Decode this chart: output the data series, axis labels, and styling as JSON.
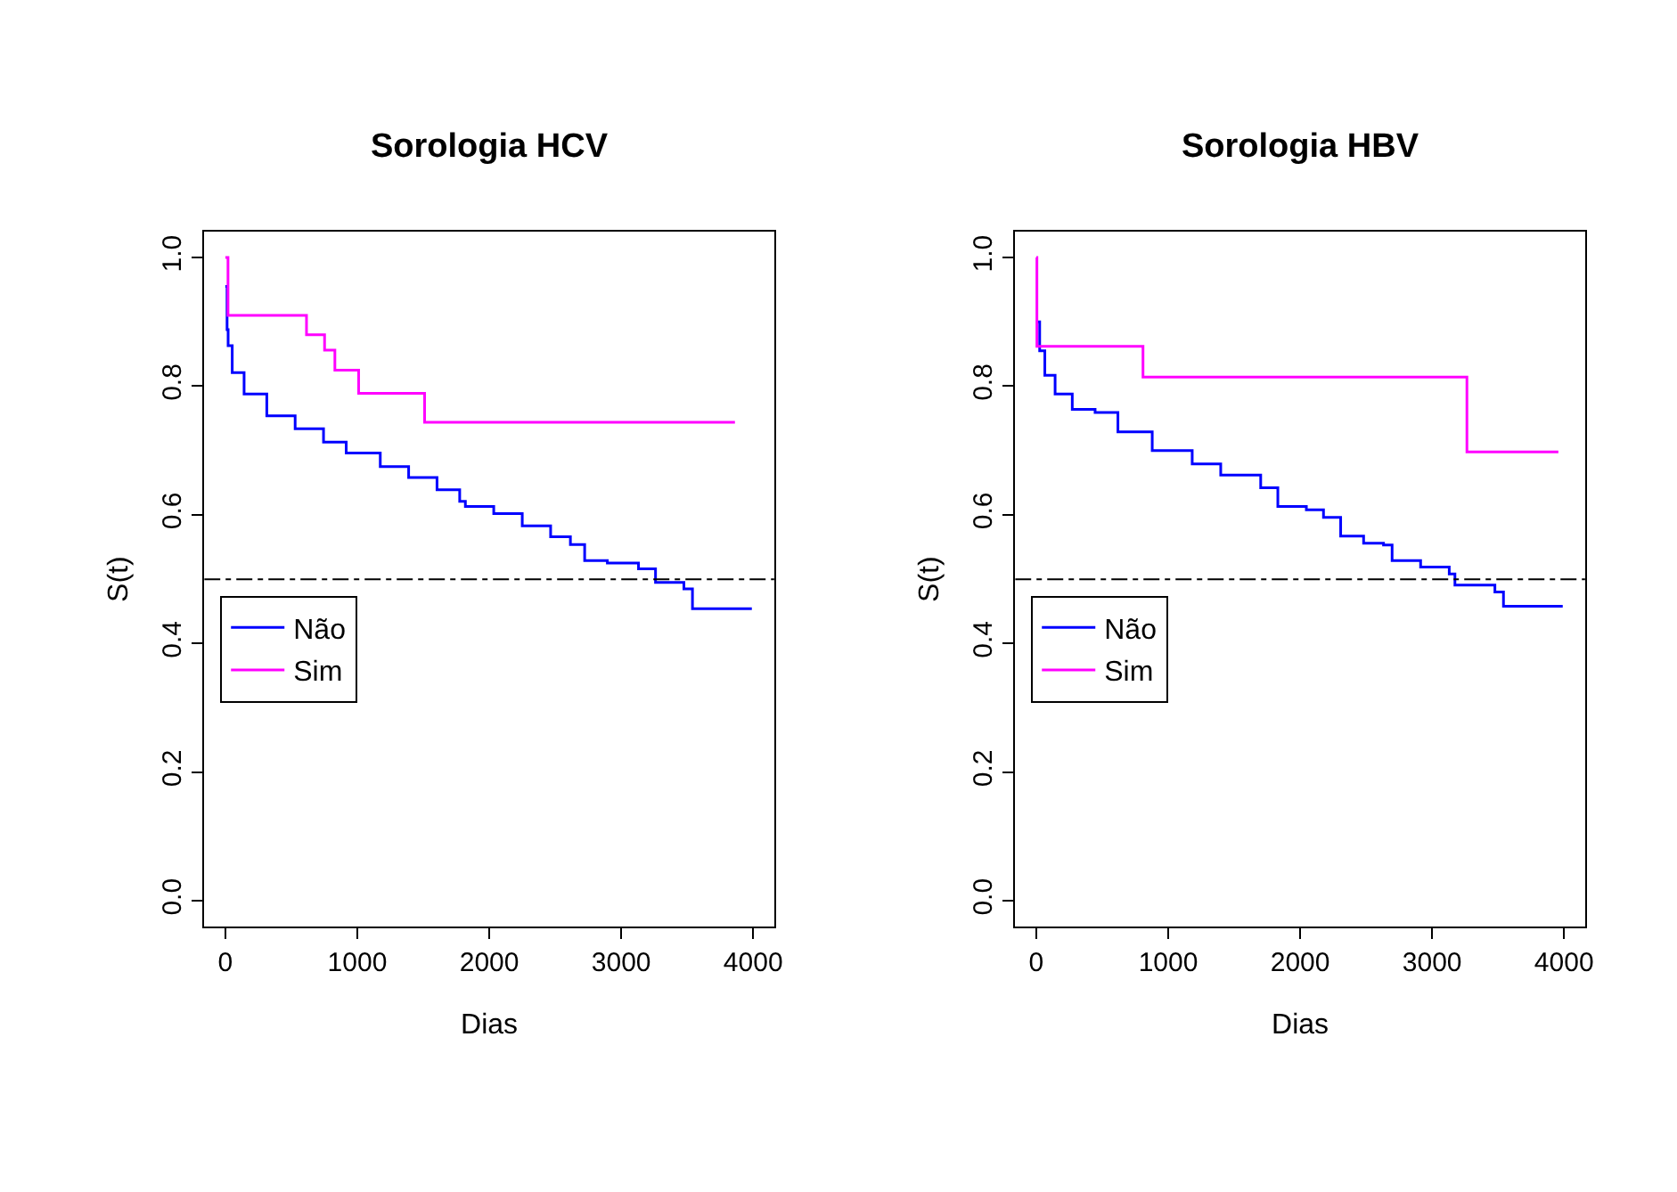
{
  "chart_data": [
    {
      "type": "step",
      "title": "Sorologia HCV",
      "xlabel": "Dias",
      "ylabel": "S(t)",
      "xlim": [
        -160,
        4160
      ],
      "xticks": [
        0,
        1000,
        2000,
        3000,
        4000
      ],
      "ylim": [
        -0.04,
        1.04
      ],
      "yticks": [
        {
          "value": 0,
          "label": "0.0"
        },
        {
          "value": 0.2,
          "label": "0.2"
        },
        {
          "value": 0.4,
          "label": "0.4"
        },
        {
          "value": 0.6,
          "label": "0.6"
        },
        {
          "value": 0.8,
          "label": "0.8"
        },
        {
          "value": 1,
          "label": "1.0"
        }
      ],
      "legend": "bottom left",
      "series": [
        {
          "name": "Não",
          "color": "#0000ff",
          "x": [
            0,
            13,
            21,
            52,
            142,
            314,
            529,
            744,
            916,
            1174,
            1389,
            1604,
            1776,
            1819,
            2034,
            2250,
            2465,
            2615,
            2723,
            2895,
            3131,
            3260,
            3475,
            3540,
            3990
          ],
          "values": [
            0.955,
            0.888,
            0.863,
            0.821,
            0.788,
            0.754,
            0.734,
            0.713,
            0.696,
            0.675,
            0.658,
            0.639,
            0.621,
            0.613,
            0.602,
            0.583,
            0.566,
            0.554,
            0.529,
            0.525,
            0.516,
            0.495,
            0.485,
            0.454,
            0.454
          ]
        },
        {
          "name": "Sim",
          "color": "#ff00ff",
          "x": [
            0,
            20,
            615,
            752,
            830,
            1010,
            1510,
            3862
          ],
          "values": [
            1.0,
            0.91,
            0.88,
            0.856,
            0.825,
            0.789,
            0.744,
            0.744
          ]
        }
      ],
      "ref_lines": [
        {
          "axis": "y",
          "value": 0.5,
          "color": "#000000",
          "line_style": "dashdot"
        }
      ]
    },
    {
      "type": "step",
      "title": "Sorologia HBV",
      "xlabel": "Dias",
      "ylabel": "S(t)",
      "xlim": [
        -160,
        4160
      ],
      "xticks": [
        0,
        1000,
        2000,
        3000,
        4000
      ],
      "ylim": [
        -0.04,
        1.04
      ],
      "yticks": [
        {
          "value": 0,
          "label": "0.0"
        },
        {
          "value": 0.2,
          "label": "0.2"
        },
        {
          "value": 0.4,
          "label": "0.4"
        },
        {
          "value": 0.6,
          "label": "0.6"
        },
        {
          "value": 0.8,
          "label": "0.8"
        },
        {
          "value": 1,
          "label": "1.0"
        }
      ],
      "legend": "bottom left",
      "series": [
        {
          "name": "Não",
          "color": "#0000ff",
          "x": [
            0,
            26,
            65,
            143,
            273,
            446,
            619,
            879,
            1182,
            1398,
            1701,
            1831,
            2047,
            2177,
            2307,
            2481,
            2632,
            2697,
            2913,
            3130,
            3173,
            3476,
            3541,
            3990
          ],
          "values": [
            0.9,
            0.855,
            0.817,
            0.788,
            0.764,
            0.759,
            0.729,
            0.7,
            0.679,
            0.662,
            0.642,
            0.613,
            0.608,
            0.596,
            0.567,
            0.556,
            0.553,
            0.529,
            0.519,
            0.508,
            0.491,
            0.48,
            0.458,
            0.458
          ]
        },
        {
          "name": "Sim",
          "color": "#ff00ff",
          "x": [
            0,
            5,
            809,
            3264,
            3957
          ],
          "values": [
            1.0,
            0.862,
            0.814,
            0.698,
            0.698
          ]
        }
      ],
      "ref_lines": [
        {
          "axis": "y",
          "value": 0.5,
          "color": "#000000",
          "line_style": "dashdot"
        }
      ]
    }
  ]
}
